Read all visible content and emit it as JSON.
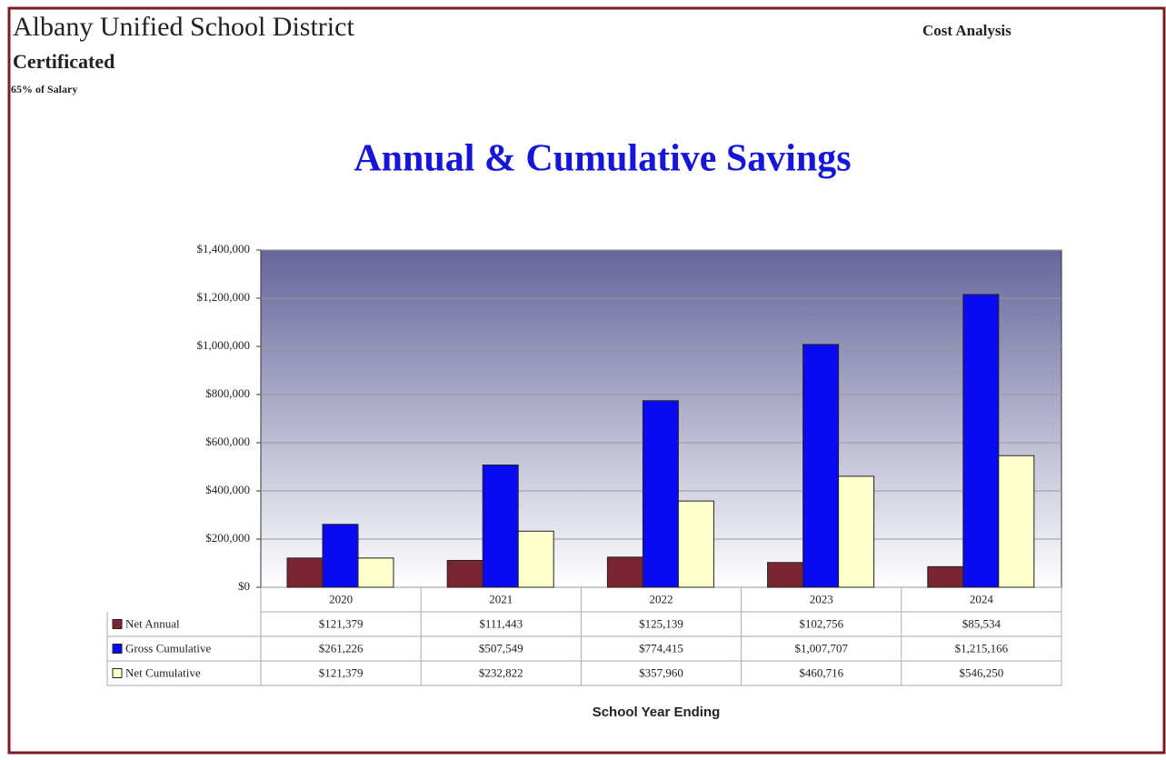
{
  "header": {
    "district": "Albany Unified School District",
    "group": "Certificated",
    "note": "65% of Salary",
    "report": "Cost Analysis"
  },
  "chart_data": {
    "type": "bar",
    "title": "Annual & Cumulative Savings",
    "x_label": "School Year Ending",
    "categories": [
      "2020",
      "2021",
      "2022",
      "2023",
      "2024"
    ],
    "series": [
      {
        "name": "Net Annual",
        "color": "#7a2632",
        "values": [
          121379,
          111443,
          125139,
          102756,
          85534
        ],
        "value_labels": [
          "$121,379",
          "$111,443",
          "$125,139",
          "$102,756",
          "$85,534"
        ]
      },
      {
        "name": "Gross Cumulative",
        "color": "#0a0af2",
        "values": [
          261226,
          507549,
          774415,
          1007707,
          1215166
        ],
        "value_labels": [
          "$261,226",
          "$507,549",
          "$774,415",
          "$1,007,707",
          "$1,215,166"
        ]
      },
      {
        "name": "Net Cumulative",
        "color": "#ffffcc",
        "values": [
          121379,
          232822,
          357960,
          460716,
          546250
        ],
        "value_labels": [
          "$121,379",
          "$232,822",
          "$357,960",
          "$460,716",
          "$546,250"
        ]
      }
    ],
    "ylim": [
      0,
      1400000
    ],
    "yticks": [
      {
        "value": 0,
        "label": "$0"
      },
      {
        "value": 200000,
        "label": "$200,000"
      },
      {
        "value": 400000,
        "label": "$400,000"
      },
      {
        "value": 600000,
        "label": "$600,000"
      },
      {
        "value": 800000,
        "label": "$800,000"
      },
      {
        "value": 1000000,
        "label": "$1,000,000"
      },
      {
        "value": 1200000,
        "label": "$1,200,000"
      },
      {
        "value": 1400000,
        "label": "$1,400,000"
      }
    ],
    "grid": true
  }
}
